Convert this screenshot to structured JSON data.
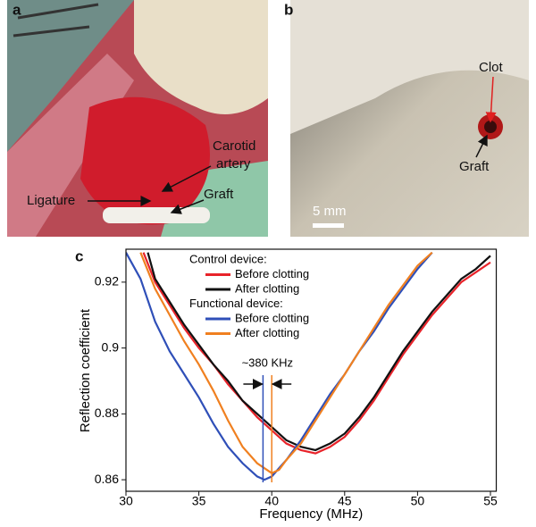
{
  "photo_panels": [
    {
      "label": "a",
      "annotations": [
        "Carotid",
        "artery",
        "Ligature",
        "Graft"
      ]
    },
    {
      "label": "b",
      "annotations": [
        "Clot",
        "Graft"
      ],
      "scale_bar": "5 mm"
    }
  ],
  "chart_data": {
    "type": "line",
    "label": "c",
    "x_label": "Frequency (MHz)",
    "y_label": "Reflection coefficient",
    "xlim": [
      30,
      55.4
    ],
    "xticks": [
      30,
      35,
      40,
      45,
      50,
      55
    ],
    "ylim": [
      0.8565,
      0.93
    ],
    "yticks": [
      0.86,
      0.88,
      0.9,
      0.92
    ],
    "series": [
      {
        "group": "Control device:",
        "name": "Before clotting",
        "color": "#e8232a",
        "x": [
          31.2,
          32,
          33,
          34,
          35,
          36,
          37,
          38,
          39,
          40,
          41,
          42,
          43,
          44,
          45,
          46,
          47,
          48,
          49,
          50,
          51,
          52,
          53,
          54,
          55
        ],
        "values": [
          0.929,
          0.92,
          0.913,
          0.906,
          0.9,
          0.895,
          0.889,
          0.884,
          0.879,
          0.875,
          0.871,
          0.869,
          0.868,
          0.87,
          0.873,
          0.878,
          0.884,
          0.891,
          0.898,
          0.904,
          0.91,
          0.915,
          0.92,
          0.923,
          0.926
        ]
      },
      {
        "group": "Control device:",
        "name": "After clotting",
        "color": "#111111",
        "x": [
          31.5,
          32,
          33,
          34,
          35,
          36,
          37,
          38,
          39,
          40,
          41,
          42,
          43,
          44,
          45,
          46,
          47,
          48,
          49,
          50,
          51,
          52,
          53,
          54,
          55
        ],
        "values": [
          0.929,
          0.921,
          0.914,
          0.907,
          0.901,
          0.895,
          0.89,
          0.884,
          0.88,
          0.876,
          0.872,
          0.87,
          0.869,
          0.871,
          0.874,
          0.879,
          0.885,
          0.892,
          0.899,
          0.905,
          0.911,
          0.916,
          0.921,
          0.924,
          0.928
        ]
      },
      {
        "group": "Functional device:",
        "name": "Before clotting",
        "color": "#2f4fb8",
        "x": [
          30,
          31,
          32,
          33,
          34,
          35,
          36,
          37,
          38,
          39,
          39.5,
          40,
          41,
          42,
          43,
          44,
          45,
          46,
          47,
          48,
          49,
          50,
          51
        ],
        "values": [
          0.929,
          0.921,
          0.908,
          0.899,
          0.892,
          0.885,
          0.877,
          0.87,
          0.865,
          0.861,
          0.86,
          0.861,
          0.866,
          0.872,
          0.879,
          0.886,
          0.892,
          0.899,
          0.905,
          0.912,
          0.918,
          0.924,
          0.929
        ]
      },
      {
        "group": "Functional device:",
        "name": "After clotting",
        "color": "#f08020",
        "x": [
          31,
          32,
          33,
          34,
          35,
          36,
          37,
          38,
          39,
          40,
          40.5,
          41,
          42,
          43,
          44,
          45,
          46,
          47,
          48,
          49,
          50,
          51
        ],
        "values": [
          0.929,
          0.918,
          0.91,
          0.902,
          0.895,
          0.887,
          0.878,
          0.87,
          0.865,
          0.862,
          0.863,
          0.866,
          0.871,
          0.878,
          0.885,
          0.892,
          0.899,
          0.906,
          0.913,
          0.919,
          0.925,
          0.929
        ]
      }
    ],
    "shift_markers": [
      {
        "x": 39.4,
        "color": "#2f4fb8"
      },
      {
        "x": 40.0,
        "color": "#f08020"
      }
    ],
    "shift_label": "~380 KHz"
  }
}
